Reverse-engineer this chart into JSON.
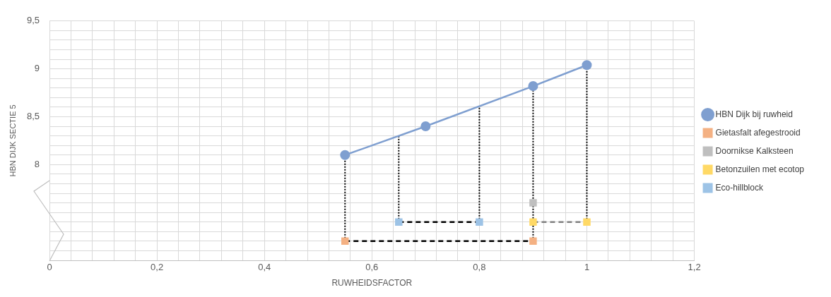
{
  "chart_data": {
    "type": "line",
    "xlabel": "RUWHEIDSFACTOR",
    "ylabel": "HBN DIJK SECTIE 5",
    "xlim": [
      0,
      1.2
    ],
    "ylim": [
      7,
      9.5
    ],
    "xticks": [
      0,
      {
        "value": 0.04,
        "label": null
      },
      {
        "value": 0.08,
        "label": null
      },
      {
        "value": 0.12,
        "label": null
      },
      {
        "value": 0.16,
        "label": null
      },
      {
        "value": 0.2,
        "label": "0,2"
      },
      {
        "value": 0.24,
        "label": null
      },
      {
        "value": 0.28,
        "label": null
      },
      {
        "value": 0.32,
        "label": null
      },
      {
        "value": 0.36,
        "label": null
      },
      {
        "value": 0.4,
        "label": "0,4"
      },
      {
        "value": 0.44,
        "label": null
      },
      {
        "value": 0.48,
        "label": null
      },
      {
        "value": 0.52,
        "label": null
      },
      {
        "value": 0.56,
        "label": null
      },
      {
        "value": 0.6,
        "label": "0,6"
      },
      {
        "value": 0.64,
        "label": null
      },
      {
        "value": 0.68,
        "label": null
      },
      {
        "value": 0.72,
        "label": null
      },
      {
        "value": 0.76,
        "label": null
      },
      {
        "value": 0.8,
        "label": "0,8"
      },
      {
        "value": 0.84,
        "label": null
      },
      {
        "value": 0.88,
        "label": null
      },
      {
        "value": 0.92,
        "label": null
      },
      {
        "value": 0.96,
        "label": null
      },
      1,
      {
        "value": 1.04,
        "label": null
      },
      {
        "value": 1.08,
        "label": null
      },
      {
        "value": 1.12,
        "label": null
      },
      {
        "value": 1.16,
        "label": null
      },
      {
        "value": 1.2,
        "label": "1,2"
      }
    ],
    "yticks": [
      {
        "value": 7,
        "label": null
      },
      {
        "value": 7.1,
        "label": null
      },
      {
        "value": 7.2,
        "label": null
      },
      {
        "value": 7.3,
        "label": null
      },
      {
        "value": 7.4,
        "label": null
      },
      {
        "value": 7.5,
        "label": null
      },
      {
        "value": 7.6,
        "label": null
      },
      {
        "value": 7.7,
        "label": null
      },
      {
        "value": 7.8,
        "label": null
      },
      {
        "value": 7.9,
        "label": null
      },
      8,
      {
        "value": 8.1,
        "label": null
      },
      {
        "value": 8.2,
        "label": null
      },
      {
        "value": 8.3,
        "label": null
      },
      {
        "value": 8.4,
        "label": null
      },
      {
        "value": 8.5,
        "label": "8,5"
      },
      {
        "value": 8.6,
        "label": null
      },
      {
        "value": 8.7,
        "label": null
      },
      {
        "value": 8.8,
        "label": null
      },
      {
        "value": 8.9,
        "label": null
      },
      9,
      {
        "value": 9.1,
        "label": null
      },
      {
        "value": 9.2,
        "label": null
      },
      {
        "value": 9.3,
        "label": null
      },
      {
        "value": 9.4,
        "label": null
      },
      {
        "value": 9.5,
        "label": "9,5"
      }
    ],
    "grid": true,
    "legend": "right",
    "series": [
      {
        "name": "HBN Dijk bij ruwheid",
        "color": "#7f9fd0",
        "marker": "circle",
        "line_style": "solid",
        "x": [
          0.55,
          0.7,
          0.9,
          1.0
        ],
        "values": [
          8.1,
          8.4,
          8.82,
          9.04
        ]
      },
      {
        "name": "Gietasfalt afegestrooid",
        "type": "scatter",
        "color": "#f4b183",
        "marker": "square",
        "x": [
          0.55,
          0.9
        ],
        "values": [
          7.2,
          7.2
        ]
      },
      {
        "name": "Doornikse Kalksteen",
        "type": "scatter",
        "color": "#bfbfbf",
        "marker": "square",
        "x": [
          0.9
        ],
        "values": [
          7.6
        ]
      },
      {
        "name": "Betonzuilen met ecotop",
        "type": "scatter",
        "color": "#ffd966",
        "marker": "square",
        "x": [
          0.9,
          1.0
        ],
        "values": [
          7.4,
          7.4
        ]
      },
      {
        "name": "Eco-hillblock",
        "type": "scatter",
        "color": "#9dc3e6",
        "marker": "square",
        "x": [
          0.65,
          0.8
        ],
        "values": [
          7.4,
          7.4
        ]
      },
      {
        "type": "line",
        "color": "#000000",
        "marker": "none",
        "line_style": "dashed",
        "x": [
          0.55,
          0.9
        ],
        "values": [
          7.2,
          7.2
        ]
      },
      {
        "type": "line",
        "color": "#000000",
        "marker": "none",
        "line_style": "dashed",
        "x": [
          0.65,
          0.8
        ],
        "values": [
          7.4,
          7.4
        ]
      },
      {
        "type": "line",
        "color": "#808080",
        "marker": "none",
        "line_style": "dashed",
        "x": [
          0.9,
          1.0
        ],
        "values": [
          7.4,
          7.4
        ]
      },
      {
        "type": "line",
        "color": "#000000",
        "marker": "none",
        "line_style": "dotted",
        "x": [
          0.55,
          0.55
        ],
        "values": [
          7.2,
          8.1
        ]
      },
      {
        "type": "line",
        "color": "#000000",
        "marker": "none",
        "line_style": "dotted",
        "x": [
          0.65,
          0.65
        ],
        "values": [
          7.4,
          8.3
        ]
      },
      {
        "type": "line",
        "color": "#000000",
        "marker": "none",
        "line_style": "dotted",
        "x": [
          0.8,
          0.8
        ],
        "values": [
          7.4,
          8.61
        ]
      },
      {
        "type": "line",
        "color": "#000000",
        "marker": "none",
        "line_style": "dotted",
        "x": [
          0.9,
          0.9
        ],
        "values": [
          7.2,
          8.82
        ]
      },
      {
        "type": "line",
        "color": "#000000",
        "marker": "none",
        "line_style": "dotted",
        "x": [
          1.0,
          1.0
        ],
        "values": [
          7.4,
          9.04
        ]
      }
    ]
  }
}
